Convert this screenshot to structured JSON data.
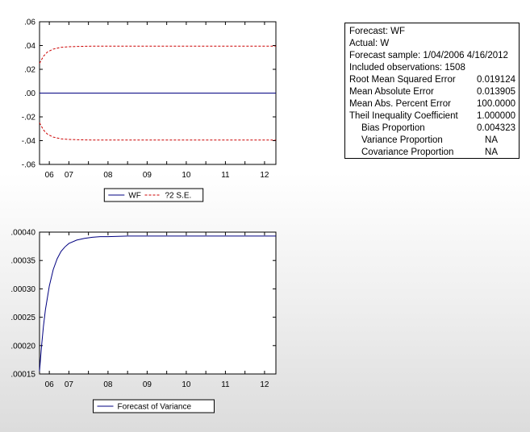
{
  "chart_data": [
    {
      "type": "line",
      "x_ticks": [
        "06",
        "07",
        "08",
        "09",
        "10",
        "11",
        "12"
      ],
      "ylim": [
        -0.06,
        0.06
      ],
      "y_ticks": [
        ".06",
        ".04",
        ".02",
        ".00",
        "-.02",
        "-.04",
        "-.06"
      ],
      "y_tick_values": [
        0.06,
        0.04,
        0.02,
        0.0,
        -0.02,
        -0.04,
        -0.06
      ],
      "xlim": [
        2006.25,
        2012.29
      ],
      "x_tick_values": [
        2006.5,
        2007.0,
        2007.5,
        2008.0,
        2008.5,
        2009.0,
        2009.5,
        2010.0,
        2010.5,
        2011.0,
        2011.5,
        2012.0
      ],
      "x_tick_labels_at": [
        2006.5,
        2007.0,
        2008.0,
        2009.0,
        2010.0,
        2011.0,
        2012.0
      ],
      "grid": false,
      "legend": [
        "WF",
        "?2 S.E."
      ],
      "legend_position": "bottom-center",
      "series": [
        {
          "name": "WF",
          "color": "#000080",
          "style": "solid",
          "x": [
            2006.25,
            2012.29
          ],
          "y": [
            0.0,
            0.0
          ]
        },
        {
          "name": "?2 S.E.",
          "color": "#cc0000",
          "style": "dashed",
          "x": [
            2006.25,
            2006.35,
            2006.45,
            2006.6,
            2006.8,
            2007.0,
            2007.3,
            2007.6,
            2008.0,
            2009.0,
            2010.0,
            2011.0,
            2012.29
          ],
          "y": [
            0.025,
            0.031,
            0.0345,
            0.037,
            0.0385,
            0.039,
            0.0393,
            0.0395,
            0.0395,
            0.0395,
            0.0395,
            0.0395,
            0.0395
          ]
        },
        {
          "name": "-2 S.E.",
          "color": "#cc0000",
          "style": "dashed",
          "x": [
            2006.25,
            2006.35,
            2006.45,
            2006.6,
            2006.8,
            2007.0,
            2007.3,
            2007.6,
            2008.0,
            2009.0,
            2010.0,
            2011.0,
            2012.29
          ],
          "y": [
            -0.025,
            -0.031,
            -0.0345,
            -0.037,
            -0.0385,
            -0.039,
            -0.0393,
            -0.0395,
            -0.0395,
            -0.0395,
            -0.0395,
            -0.0395,
            -0.0395
          ]
        }
      ]
    },
    {
      "type": "line",
      "x_ticks": [
        "06",
        "07",
        "08",
        "09",
        "10",
        "11",
        "12"
      ],
      "ylim": [
        0.00015,
        0.0004
      ],
      "y_ticks": [
        ".00040",
        ".00035",
        ".00030",
        ".00025",
        ".00020",
        ".00015"
      ],
      "y_tick_values": [
        0.0004,
        0.00035,
        0.0003,
        0.00025,
        0.0002,
        0.00015
      ],
      "xlim": [
        2006.25,
        2012.29
      ],
      "x_tick_values": [
        2006.5,
        2007.0,
        2007.5,
        2008.0,
        2008.5,
        2009.0,
        2009.5,
        2010.0,
        2010.5,
        2011.0,
        2011.5,
        2012.0
      ],
      "x_tick_labels_at": [
        2006.5,
        2007.0,
        2008.0,
        2009.0,
        2010.0,
        2011.0,
        2012.0
      ],
      "grid": false,
      "legend": [
        "Forecast of Variance"
      ],
      "legend_position": "bottom-center",
      "series": [
        {
          "name": "Forecast of Variance",
          "color": "#000080",
          "style": "solid",
          "x": [
            2006.25,
            2006.3,
            2006.35,
            2006.4,
            2006.5,
            2006.6,
            2006.7,
            2006.8,
            2006.9,
            2007.0,
            2007.2,
            2007.4,
            2007.6,
            2007.8,
            2008.0,
            2008.5,
            2009.0,
            2010.0,
            2011.0,
            2012.29
          ],
          "y": [
            0.000155,
            0.000198,
            0.000234,
            0.000263,
            0.000305,
            0.000334,
            0.000353,
            0.000366,
            0.000374,
            0.00038,
            0.000386,
            0.000389,
            0.000391,
            0.000392,
            0.000392,
            0.000393,
            0.000393,
            0.000393,
            0.000393,
            0.000393
          ]
        }
      ]
    }
  ],
  "stats": {
    "forecast": "Forecast: WF",
    "actual": "Actual: W",
    "sample": "Forecast sample: 1/04/2006 4/16/2012",
    "included": "Included observations: 1508",
    "rows": [
      {
        "label": "Root Mean Squared Error",
        "value": "0.019124"
      },
      {
        "label": "Mean Absolute Error",
        "value": "0.013905"
      },
      {
        "label": "Mean Abs. Percent Error",
        "value": "100.0000"
      },
      {
        "label": "Theil Inequality Coefficient",
        "value": "1.000000"
      },
      {
        "label": "Bias Proportion",
        "value": "0.004323"
      },
      {
        "label": "Variance Proportion",
        "value": "NA"
      },
      {
        "label": "Covariance Proportion",
        "value": "NA"
      }
    ]
  }
}
